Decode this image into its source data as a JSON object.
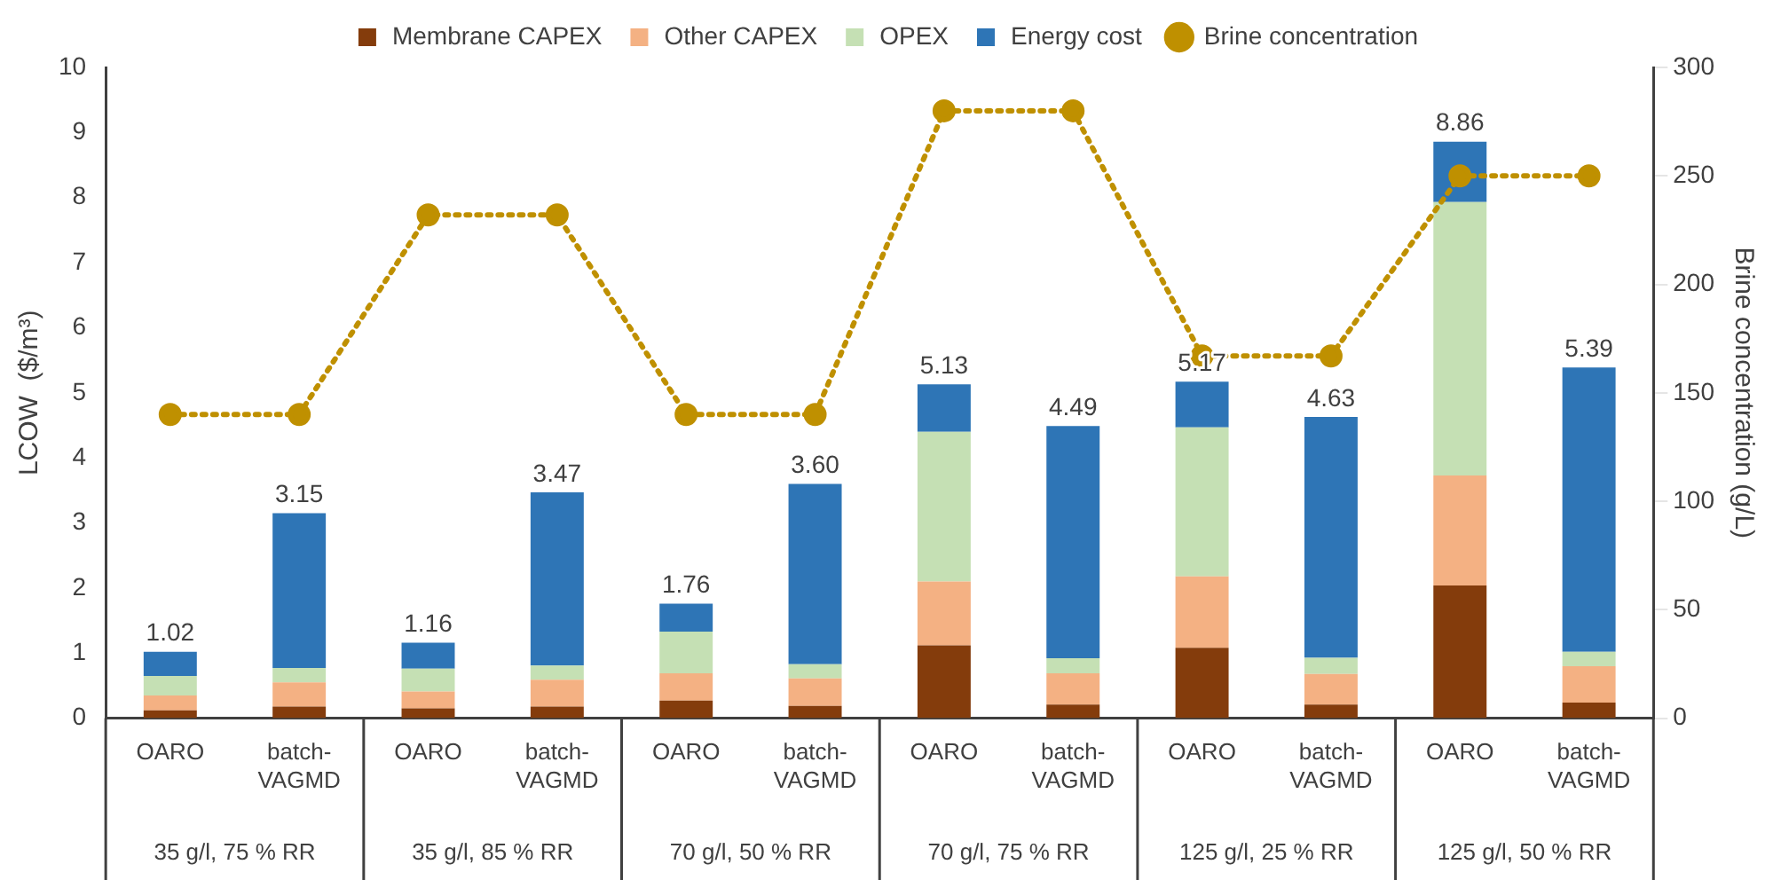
{
  "chart_data": {
    "type": "bar",
    "stacked": true,
    "ylabel": "LCOW  ($/m³)",
    "y2label": "Brine concentration (g/L)",
    "categories": [
      "OARO",
      "batch-VAGMD",
      "OARO",
      "batch-VAGMD",
      "OARO",
      "batch-VAGMD",
      "OARO",
      "batch-VAGMD",
      "OARO",
      "batch-VAGMD",
      "OARO",
      "batch-VAGMD"
    ],
    "series": [
      {
        "name": "Membrane CAPEX",
        "color": "#843c0c",
        "values": [
          0.12,
          0.18,
          0.15,
          0.18,
          0.27,
          0.19,
          1.12,
          0.21,
          1.08,
          0.21,
          2.04,
          0.24
        ]
      },
      {
        "name": "Other CAPEX",
        "color": "#f4b183",
        "values": [
          0.23,
          0.37,
          0.26,
          0.41,
          0.42,
          0.42,
          0.98,
          0.48,
          1.1,
          0.47,
          1.69,
          0.56
        ]
      },
      {
        "name": "OPEX",
        "color": "#c5e0b4",
        "values": [
          0.3,
          0.22,
          0.35,
          0.22,
          0.64,
          0.22,
          2.3,
          0.23,
          2.29,
          0.25,
          4.2,
          0.22
        ]
      },
      {
        "name": "Energy cost",
        "color": "#2e75b6",
        "values": [
          0.37,
          2.38,
          0.4,
          2.66,
          0.43,
          2.77,
          0.73,
          3.57,
          0.7,
          3.7,
          0.93,
          4.37
        ]
      },
      {
        "name": "Brine concentration",
        "type": "line",
        "axis": "y2",
        "color": "#bf9000",
        "marker": "circle",
        "line_style": "dotted",
        "values": [
          140,
          140,
          232,
          232,
          140,
          140,
          280,
          280,
          167,
          167,
          250,
          250
        ]
      }
    ],
    "totals": [
      "1.02",
      "3.15",
      "1.16",
      "3.47",
      "1.76",
      "3.60",
      "5.13",
      "4.49",
      "5.17",
      "4.63",
      "8.86",
      "5.39"
    ],
    "annotations": [
      "35 g/l, 75 % RR",
      "35 g/l, 85 % RR",
      "70 g/l, 50 % RR",
      "70 g/l, 75 % RR",
      "125 g/l, 25 % RR",
      "125 g/l, 50 % RR"
    ],
    "ylim": [
      0,
      10
    ],
    "yticks": [
      0,
      1,
      2,
      3,
      4,
      5,
      6,
      7,
      8,
      9,
      10
    ],
    "y2lim": [
      0,
      300
    ],
    "y2ticks": [
      0,
      50,
      100,
      150,
      200,
      250,
      300
    ],
    "grid": false,
    "legend": "top"
  }
}
